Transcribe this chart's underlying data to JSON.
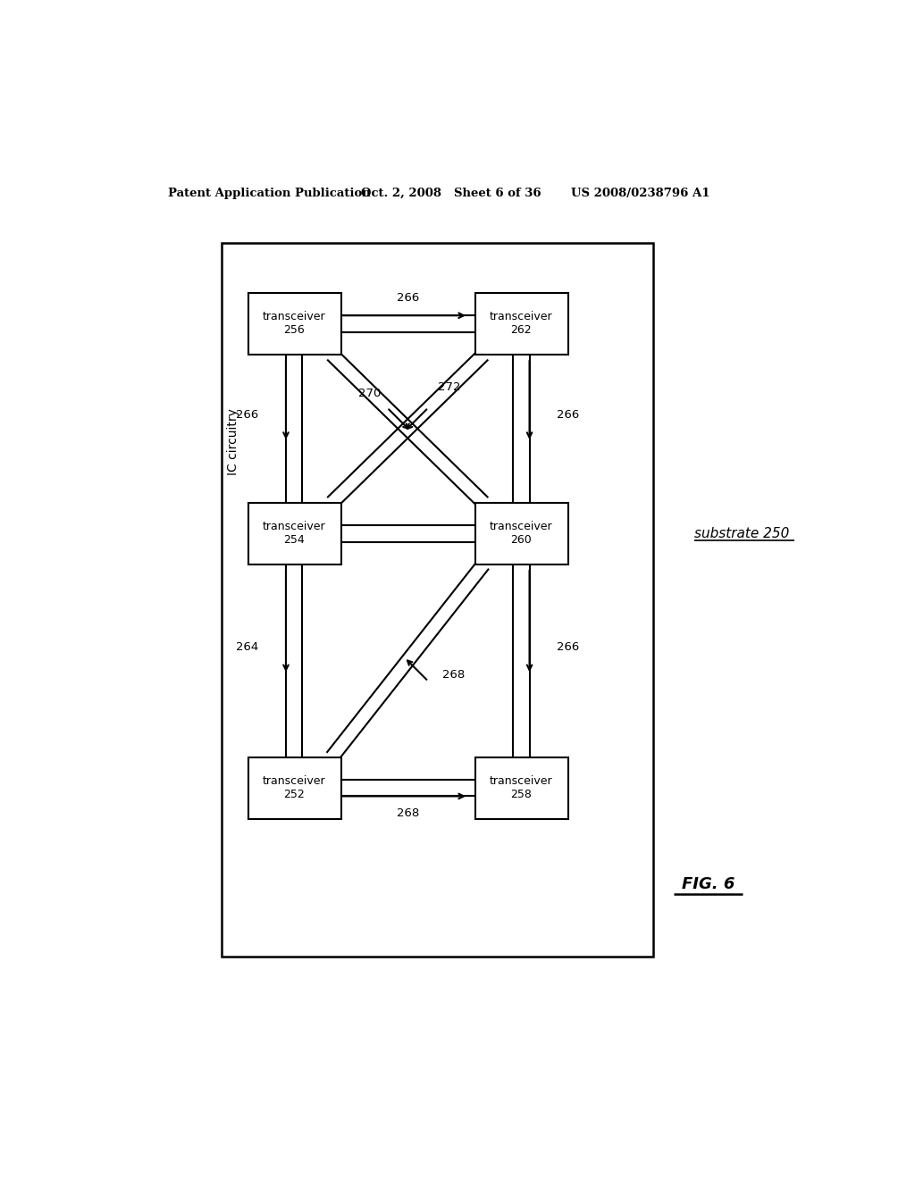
{
  "bg_color": "#ffffff",
  "header_text": "Patent Application Publication",
  "header_date": "Oct. 2, 2008",
  "header_sheet": "Sheet 6 of 36",
  "header_patent": "US 2008/0238796 A1",
  "fig_label": "FIG. 6",
  "transceivers": [
    {
      "label": "transceiver\n256",
      "id": 256,
      "col": 0,
      "row": 0
    },
    {
      "label": "transceiver\n262",
      "id": 262,
      "col": 1,
      "row": 0
    },
    {
      "label": "transceiver\n254",
      "id": 254,
      "col": 0,
      "row": 1
    },
    {
      "label": "transceiver\n260",
      "id": 260,
      "col": 1,
      "row": 1
    },
    {
      "label": "transceiver\n252",
      "id": 252,
      "col": 0,
      "row": 2
    },
    {
      "label": "transceiver\n258",
      "id": 258,
      "col": 1,
      "row": 2
    }
  ],
  "substrate_label": "substrate 250",
  "ic_label": "IC circuitry",
  "line_color": "#000000"
}
